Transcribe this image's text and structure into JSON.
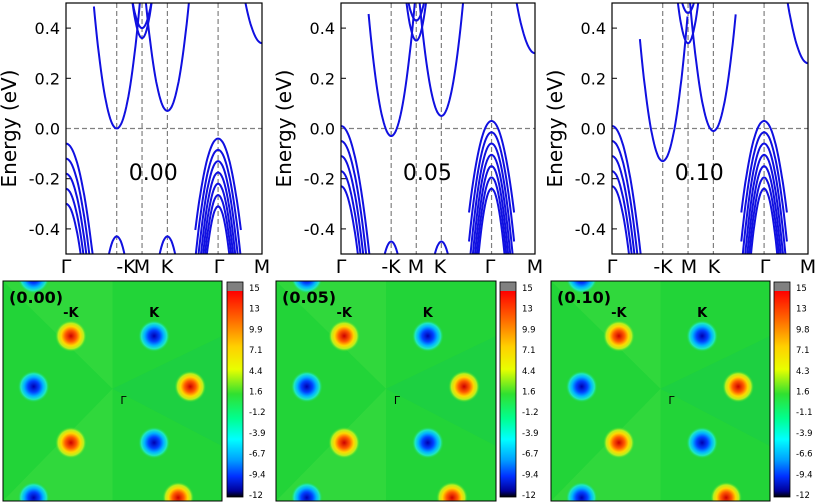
{
  "chart_data": [
    {
      "type": "line",
      "chart": "band-structure",
      "strain_label": "0.00",
      "ylabel": "Energy (eV)",
      "ylim": [
        -0.5,
        0.5
      ],
      "yticks": [
        "-0.4",
        "-0.2",
        "0.0",
        "0.2",
        "0.4"
      ],
      "kpoints": [
        "Γ",
        "-K",
        "M",
        "K",
        "Γ",
        "M"
      ],
      "kpath_positions": [
        0,
        1,
        1.5,
        2,
        3,
        3.866
      ],
      "fermi_level": 0.0,
      "conduction_minima": {
        "-K": 0.0,
        "K": 0.07
      },
      "valence_maxima": {
        "-K": -0.43,
        "K": -0.43,
        "Γ": -0.04
      }
    },
    {
      "type": "line",
      "chart": "band-structure",
      "strain_label": "0.05",
      "ylabel": "Energy (eV)",
      "ylim": [
        -0.5,
        0.5
      ],
      "yticks": [
        "-0.4",
        "-0.2",
        "0.0",
        "0.2",
        "0.4"
      ],
      "kpoints": [
        "Γ",
        "-K",
        "M",
        "K",
        "Γ",
        "M"
      ],
      "kpath_positions": [
        0,
        1,
        1.5,
        2,
        3,
        3.866
      ],
      "fermi_level": 0.0,
      "conduction_minima": {
        "-K": -0.03,
        "K": 0.05
      },
      "valence_maxima": {
        "-K": -0.45,
        "K": -0.45,
        "Γ": 0.03
      }
    },
    {
      "type": "line",
      "chart": "band-structure",
      "strain_label": "0.10",
      "ylabel": "Energy (eV)",
      "ylim": [
        -0.5,
        0.5
      ],
      "yticks": [
        "-0.4",
        "-0.2",
        "0.0",
        "0.2",
        "0.4"
      ],
      "kpoints": [
        "Γ",
        "-K",
        "M",
        "K",
        "Γ",
        "M"
      ],
      "kpath_positions": [
        0,
        1,
        1.5,
        2,
        3,
        3.866
      ],
      "fermi_level": 0.0,
      "conduction_minima": {
        "-K": -0.13,
        "K": -0.01
      },
      "valence_maxima": {
        "Γ": 0.03
      }
    },
    {
      "type": "heatmap",
      "panel_label": "(0.00)",
      "point_labels": [
        "-K",
        "K",
        "Γ"
      ],
      "colorbar_ticks": [
        "15",
        "13",
        "9.9",
        "7.1",
        "4.4",
        "1.6",
        "-1.2",
        "-3.9",
        "-6.7",
        "-9.4",
        "-12"
      ],
      "positive_peak_value": 15,
      "negative_peak_value": -12
    },
    {
      "type": "heatmap",
      "panel_label": "(0.05)",
      "point_labels": [
        "-K",
        "K",
        "Γ"
      ],
      "colorbar_ticks": [
        "15",
        "13",
        "9.9",
        "7.1",
        "4.4",
        "1.6",
        "-1.2",
        "-3.9",
        "-6.7",
        "-9.4",
        "-12"
      ],
      "positive_peak_value": 15,
      "negative_peak_value": -12
    },
    {
      "type": "heatmap",
      "panel_label": "(0.10)",
      "point_labels": [
        "-K",
        "K",
        "Γ"
      ],
      "colorbar_ticks": [
        "15",
        "13",
        "9.8",
        "7.1",
        "4.3",
        "1.6",
        "-1.1",
        "-3.9",
        "-6.6",
        "-9.4",
        "-12"
      ],
      "positive_peak_value": 15,
      "negative_peak_value": -12
    }
  ],
  "colors": {
    "band": "#1010e0",
    "fermi": "#808080",
    "heat_bg": "#22d438",
    "colorbar_top": "#808080"
  }
}
